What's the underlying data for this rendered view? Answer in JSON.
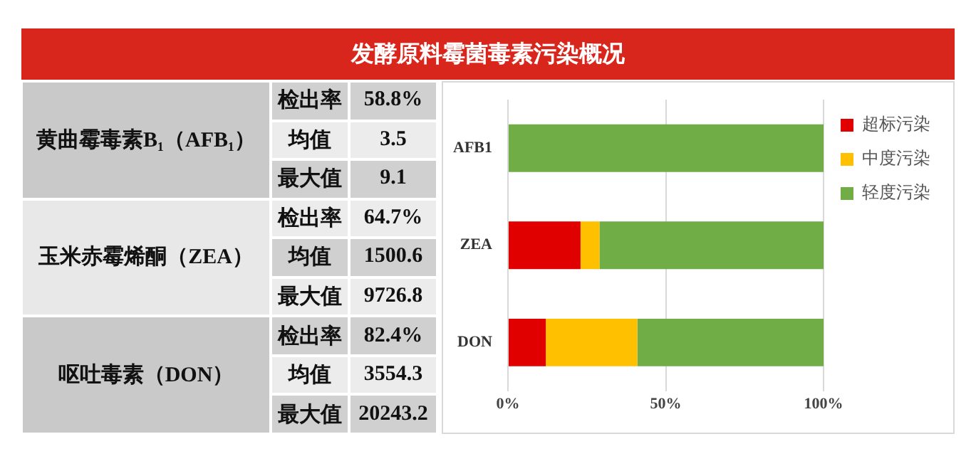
{
  "chart_data": [
    {
      "type": "other",
      "title": "发酵原料霉菌毒素污染概况",
      "annotations": [
        "黄曲霉毒素B₁（AFB₁）",
        "检出率",
        "58.8%",
        "均值",
        "3.5",
        "最大值",
        "9.1",
        "玉米赤霉烯酮（ZEA）",
        "检出率",
        "64.7%",
        "均值",
        "1500.6",
        "最大值",
        "9726.8",
        "呕吐毒素（DON）",
        "检出率",
        "82.4%",
        "均值",
        "3554.3",
        "最大值",
        "20243.2"
      ]
    },
    {
      "type": "bar",
      "orientation": "horizontal",
      "stacked": true,
      "categories": [
        "AFB1",
        "ZEA",
        "DON"
      ],
      "series": [
        {
          "name": "超标污染",
          "color": "#e00000",
          "values": [
            0,
            23,
            12
          ]
        },
        {
          "name": "中度污染",
          "color": "#ffc000",
          "values": [
            0,
            6,
            29
          ]
        },
        {
          "name": "轻度污染",
          "color": "#70ad47",
          "values": [
            100,
            71,
            59
          ]
        }
      ],
      "xlim": [
        0,
        100
      ],
      "xticks": [
        {
          "value": 0,
          "label": "0%"
        },
        {
          "value": 50,
          "label": "50%"
        },
        {
          "value": 100,
          "label": "100%"
        }
      ],
      "grid": "x",
      "legend": "right"
    }
  ]
}
